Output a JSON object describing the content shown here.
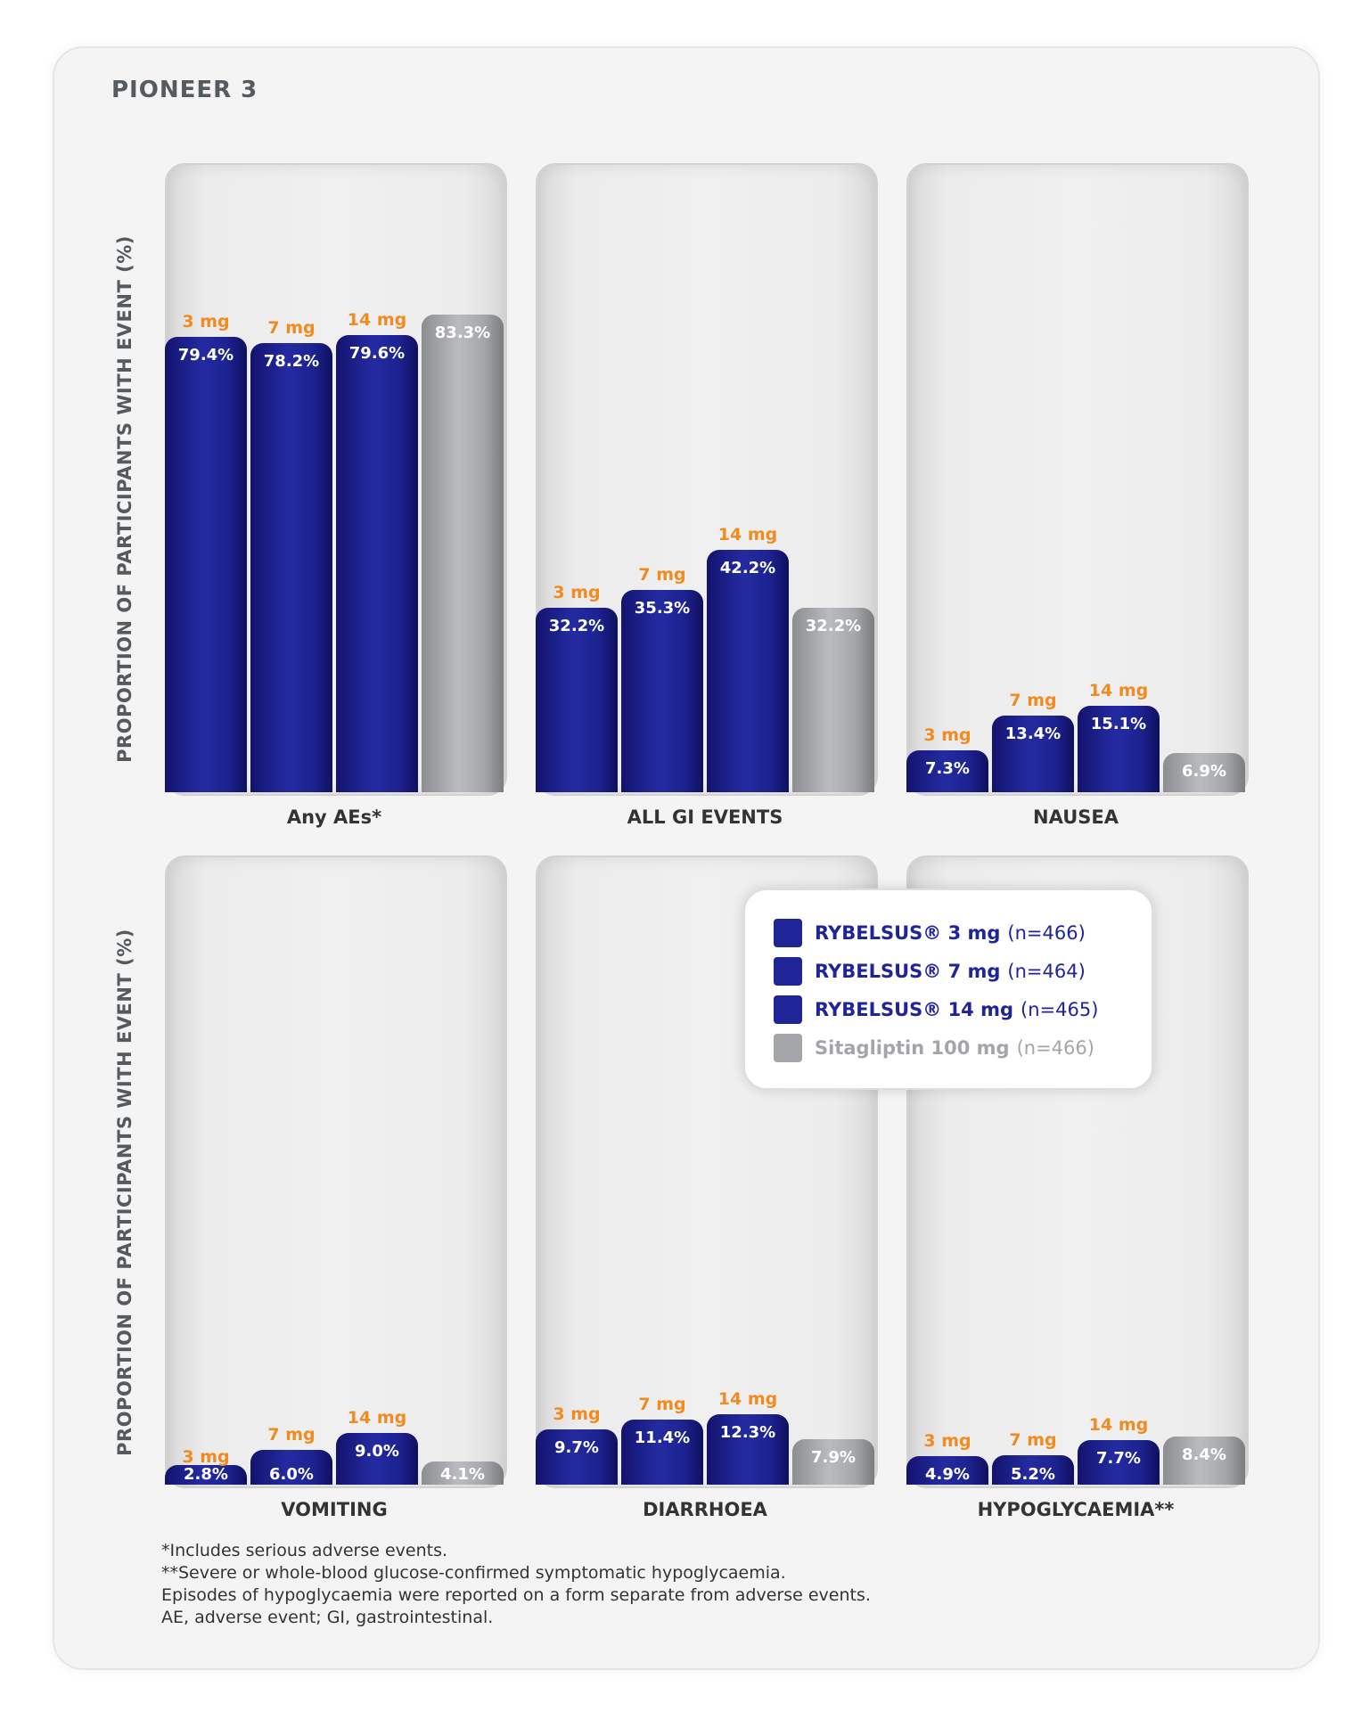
{
  "study_title": "PIONEER 3",
  "y_axis_label": "PROPORTION OF PARTICIPANTS WITH EVENT (%)",
  "dose_labels": [
    "3 mg",
    "7 mg",
    "14 mg"
  ],
  "colors": {
    "rybelsus": "#1f2496",
    "sitagliptin": "#a3a5a9",
    "dose_label": "#f28a1f"
  },
  "legend": [
    {
      "name": "RYBELSUS® 3 mg",
      "n": "(n=466)",
      "color": "#1f2496"
    },
    {
      "name": "RYBELSUS® 7 mg",
      "n": "(n=464)",
      "color": "#1f2496"
    },
    {
      "name": "RYBELSUS® 14 mg",
      "n": "(n=465)",
      "color": "#1f2496"
    },
    {
      "name": "Sitagliptin 100 mg",
      "n": "(n=466)",
      "color": "#a3a5a9"
    }
  ],
  "chart_data": [
    {
      "type": "bar",
      "category": "Any AEs*",
      "ylim": [
        0,
        100
      ],
      "series": [
        "RYBELSUS® 3 mg",
        "RYBELSUS® 7 mg",
        "RYBELSUS® 14 mg",
        "Sitagliptin 100 mg"
      ],
      "values": [
        79.4,
        78.2,
        79.6,
        83.3
      ],
      "labels": [
        "79.4%",
        "78.2%",
        "79.6%",
        "83.3%"
      ]
    },
    {
      "type": "bar",
      "category": "ALL GI EVENTS",
      "ylim": [
        0,
        100
      ],
      "series": [
        "RYBELSUS® 3 mg",
        "RYBELSUS® 7 mg",
        "RYBELSUS® 14 mg",
        "Sitagliptin 100 mg"
      ],
      "values": [
        32.2,
        35.3,
        42.2,
        32.2
      ],
      "labels": [
        "32.2%",
        "35.3%",
        "42.2%",
        "32.2%"
      ]
    },
    {
      "type": "bar",
      "category": "NAUSEA",
      "ylim": [
        0,
        100
      ],
      "series": [
        "RYBELSUS® 3 mg",
        "RYBELSUS® 7 mg",
        "RYBELSUS® 14 mg",
        "Sitagliptin 100 mg"
      ],
      "values": [
        7.3,
        13.4,
        15.1,
        6.9
      ],
      "labels": [
        "7.3%",
        "13.4%",
        "15.1%",
        "6.9%"
      ]
    },
    {
      "type": "bar",
      "category": "VOMITING",
      "ylim": [
        0,
        100
      ],
      "series": [
        "RYBELSUS® 3 mg",
        "RYBELSUS® 7 mg",
        "RYBELSUS® 14 mg",
        "Sitagliptin 100 mg"
      ],
      "values": [
        2.8,
        6.0,
        9.0,
        4.1
      ],
      "labels": [
        "2.8%",
        "6.0%",
        "9.0%",
        "4.1%"
      ]
    },
    {
      "type": "bar",
      "category": "DIARRHOEA",
      "ylim": [
        0,
        100
      ],
      "series": [
        "RYBELSUS® 3 mg",
        "RYBELSUS® 7 mg",
        "RYBELSUS® 14 mg",
        "Sitagliptin 100 mg"
      ],
      "values": [
        9.7,
        11.4,
        12.3,
        7.9
      ],
      "labels": [
        "9.7%",
        "11.4%",
        "12.3%",
        "7.9%"
      ]
    },
    {
      "type": "bar",
      "category": "HYPOGLYCAEMIA**",
      "ylim": [
        0,
        100
      ],
      "series": [
        "RYBELSUS® 3 mg",
        "RYBELSUS® 7 mg",
        "RYBELSUS® 14 mg",
        "Sitagliptin 100 mg"
      ],
      "values": [
        4.9,
        5.2,
        7.7,
        8.4
      ],
      "labels": [
        "4.9%",
        "5.2%",
        "7.7%",
        "8.4%"
      ]
    }
  ],
  "footnotes": [
    "*Includes serious adverse events.",
    "**Severe or whole-blood glucose-confirmed symptomatic hypoglycaemia.",
    "Episodes of hypoglycaemia were reported on a form separate from adverse events.",
    "AE, adverse event; GI, gastrointestinal."
  ]
}
